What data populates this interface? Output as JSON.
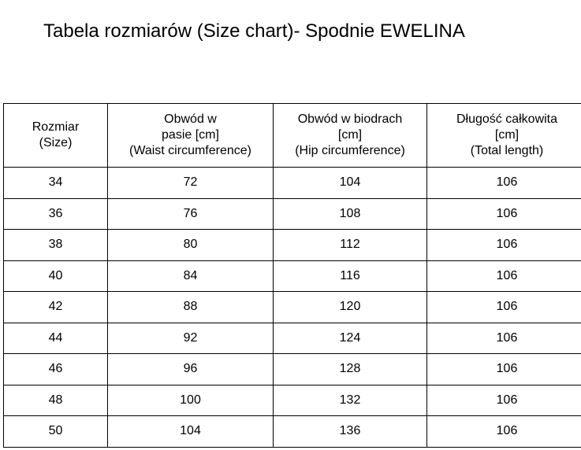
{
  "title": "Tabela rozmiarów (Size chart)- Spodnie EWELINA",
  "headers": [
    [
      "Rozmiar",
      "(Size)"
    ],
    [
      "Obwód w",
      "pasie [cm]",
      "(Waist  circumference)"
    ],
    [
      "Obwód w biodrach",
      "[cm]",
      "(Hip circumference)"
    ],
    [
      "Długość całkowita",
      "[cm]",
      "(Total length)"
    ]
  ],
  "rows": [
    [
      "34",
      "72",
      "104",
      "106"
    ],
    [
      "36",
      "76",
      "108",
      "106"
    ],
    [
      "38",
      "80",
      "112",
      "106"
    ],
    [
      "40",
      "84",
      "116",
      "106"
    ],
    [
      "42",
      "88",
      "120",
      "106"
    ],
    [
      "44",
      "92",
      "124",
      "106"
    ],
    [
      "46",
      "96",
      "128",
      "106"
    ],
    [
      "48",
      "100",
      "132",
      "106"
    ],
    [
      "50",
      "104",
      "136",
      "106"
    ]
  ]
}
